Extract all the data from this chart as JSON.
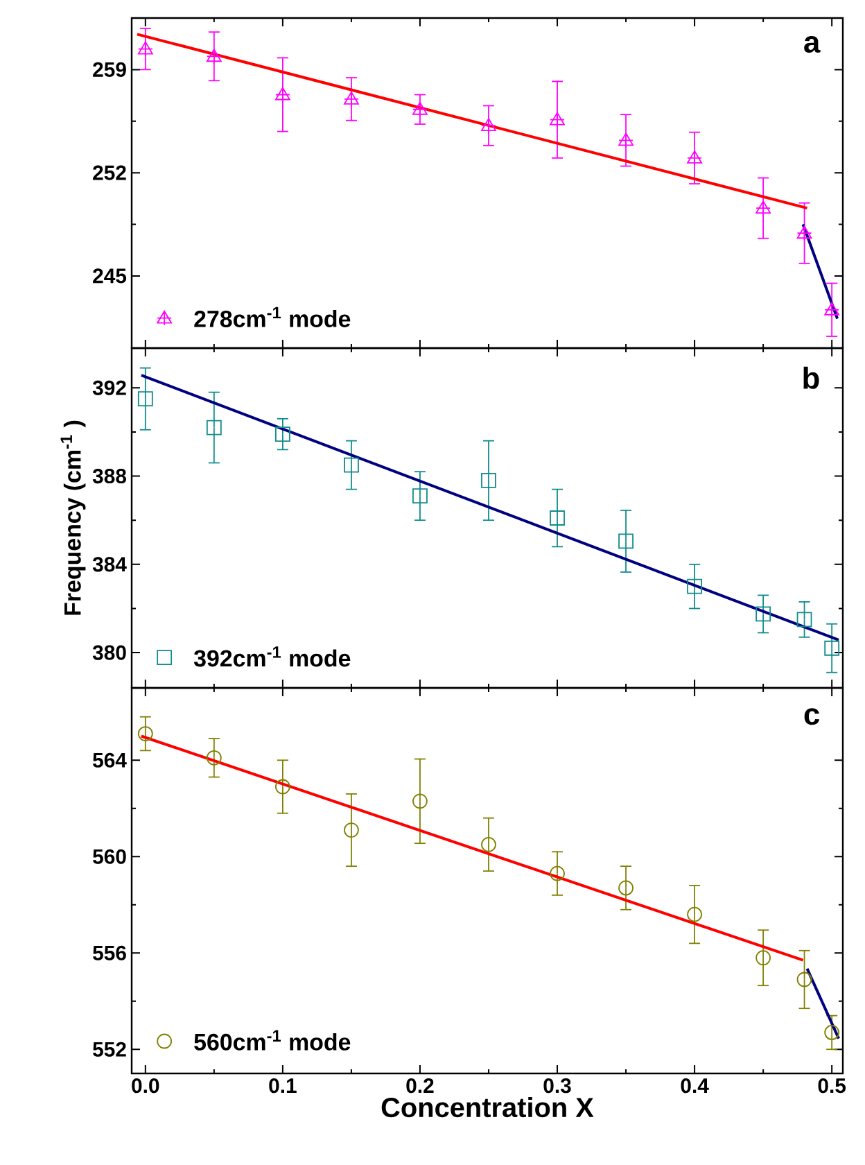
{
  "chart_data": [
    {
      "type": "scatter",
      "annotations": [
        "a"
      ],
      "xlim": [
        -0.01,
        0.508
      ],
      "xticks": [
        0,
        0.1,
        0.2,
        0.3,
        0.4,
        0.5
      ],
      "ylim": [
        240.1,
        262.5
      ],
      "yticks": [
        245,
        252,
        259
      ],
      "tick_labels": "y",
      "legend": "bottom left",
      "series": [
        {
          "name": "278cm$^{-1}$ mode",
          "color": "#ff00ff",
          "marker": "triangle",
          "x": [
            0,
            0.05,
            0.1,
            0.15,
            0.2,
            0.25,
            0.3,
            0.35,
            0.4,
            0.45,
            0.48,
            0.5
          ],
          "values": [
            260.4,
            259.9,
            257.3,
            257.0,
            256.3,
            255.2,
            255.6,
            254.2,
            253.0,
            249.6,
            247.9,
            242.7
          ],
          "errors": [
            1.4,
            1.65,
            2.5,
            1.45,
            1.0,
            1.35,
            2.6,
            1.75,
            1.75,
            2.05,
            2.05,
            1.8
          ]
        },
        {
          "type": "line",
          "color": "#ff0000",
          "x": [
            -0.006,
            0.482
          ],
          "values": [
            261.4,
            249.6
          ]
        },
        {
          "type": "line",
          "color": "#000080",
          "x": [
            0.479,
            0.504
          ],
          "values": [
            248.5,
            242.1
          ]
        }
      ]
    },
    {
      "type": "scatter",
      "annotations": [
        "b"
      ],
      "ylabel": "Frequency (cm$^{-1}$ )",
      "xlim": [
        -0.01,
        0.508
      ],
      "xticks": [
        0,
        0.1,
        0.2,
        0.3,
        0.4,
        0.5
      ],
      "ylim": [
        378.4,
        393.8
      ],
      "yticks": [
        380,
        384,
        388,
        392
      ],
      "tick_labels": "y",
      "legend": "bottom left",
      "series": [
        {
          "name": "392cm$^{-1}$ mode",
          "color": "#108c8c",
          "marker": "square",
          "x": [
            0,
            0.05,
            0.1,
            0.15,
            0.2,
            0.25,
            0.3,
            0.35,
            0.4,
            0.45,
            0.48,
            0.5
          ],
          "values": [
            391.5,
            390.2,
            389.9,
            388.5,
            387.1,
            387.8,
            386.1,
            385.05,
            383.0,
            381.75,
            381.5,
            380.2
          ],
          "errors": [
            1.4,
            1.6,
            0.7,
            1.1,
            1.1,
            1.8,
            1.3,
            1.4,
            1.0,
            0.85,
            0.8,
            1.1
          ]
        },
        {
          "type": "line",
          "color": "#000080",
          "x": [
            -0.003,
            0.505
          ],
          "values": [
            392.57,
            380.57
          ]
        }
      ]
    },
    {
      "type": "scatter",
      "annotations": [
        "c"
      ],
      "xlabel": "Concentration X",
      "xlim": [
        -0.01,
        0.508
      ],
      "xticks": [
        {
          "value": 0,
          "label": "0.0"
        },
        {
          "value": 0.1,
          "label": "0.1"
        },
        {
          "value": 0.2,
          "label": "0.2"
        },
        {
          "value": 0.3,
          "label": "0.3"
        },
        {
          "value": 0.4,
          "label": "0.4"
        },
        {
          "value": 0.5,
          "label": "0.5"
        }
      ],
      "ylim": [
        551,
        567
      ],
      "yticks": [
        552,
        556,
        560,
        564
      ],
      "legend": "bottom left",
      "series": [
        {
          "name": "560cm$^{-1}$ mode",
          "color": "#808000",
          "marker": "circle",
          "x": [
            0,
            0.05,
            0.1,
            0.15,
            0.2,
            0.25,
            0.3,
            0.35,
            0.4,
            0.45,
            0.48,
            0.5
          ],
          "values": [
            565.1,
            564.1,
            562.9,
            561.1,
            562.3,
            560.5,
            559.3,
            558.7,
            557.6,
            555.8,
            554.9,
            552.7
          ],
          "errors": [
            0.7,
            0.8,
            1.1,
            1.5,
            1.75,
            1.1,
            0.9,
            0.9,
            1.2,
            1.15,
            1.2,
            0.7
          ]
        },
        {
          "type": "line",
          "color": "#ff0000",
          "x": [
            -0.003,
            0.479
          ],
          "values": [
            565.0,
            555.7
          ]
        },
        {
          "type": "line",
          "color": "#000080",
          "x": [
            0.482,
            0.505
          ],
          "values": [
            555.35,
            552.45
          ]
        }
      ]
    }
  ]
}
